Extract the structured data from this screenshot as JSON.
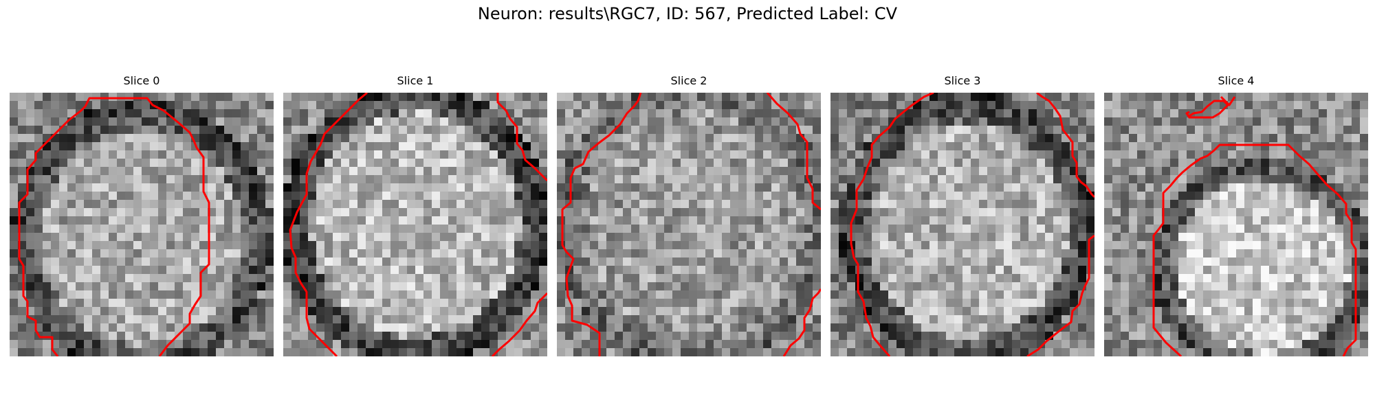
{
  "figure": {
    "title": "Neuron: results\\RGC7, ID: 567, Predicted Label: CV",
    "colormap": "grayscale",
    "contour_color": "#ff0000"
  },
  "slices": [
    {
      "title": "Slice 0"
    },
    {
      "title": "Slice 1"
    },
    {
      "title": "Slice 2"
    },
    {
      "title": "Slice 3"
    },
    {
      "title": "Slice 4"
    }
  ]
}
